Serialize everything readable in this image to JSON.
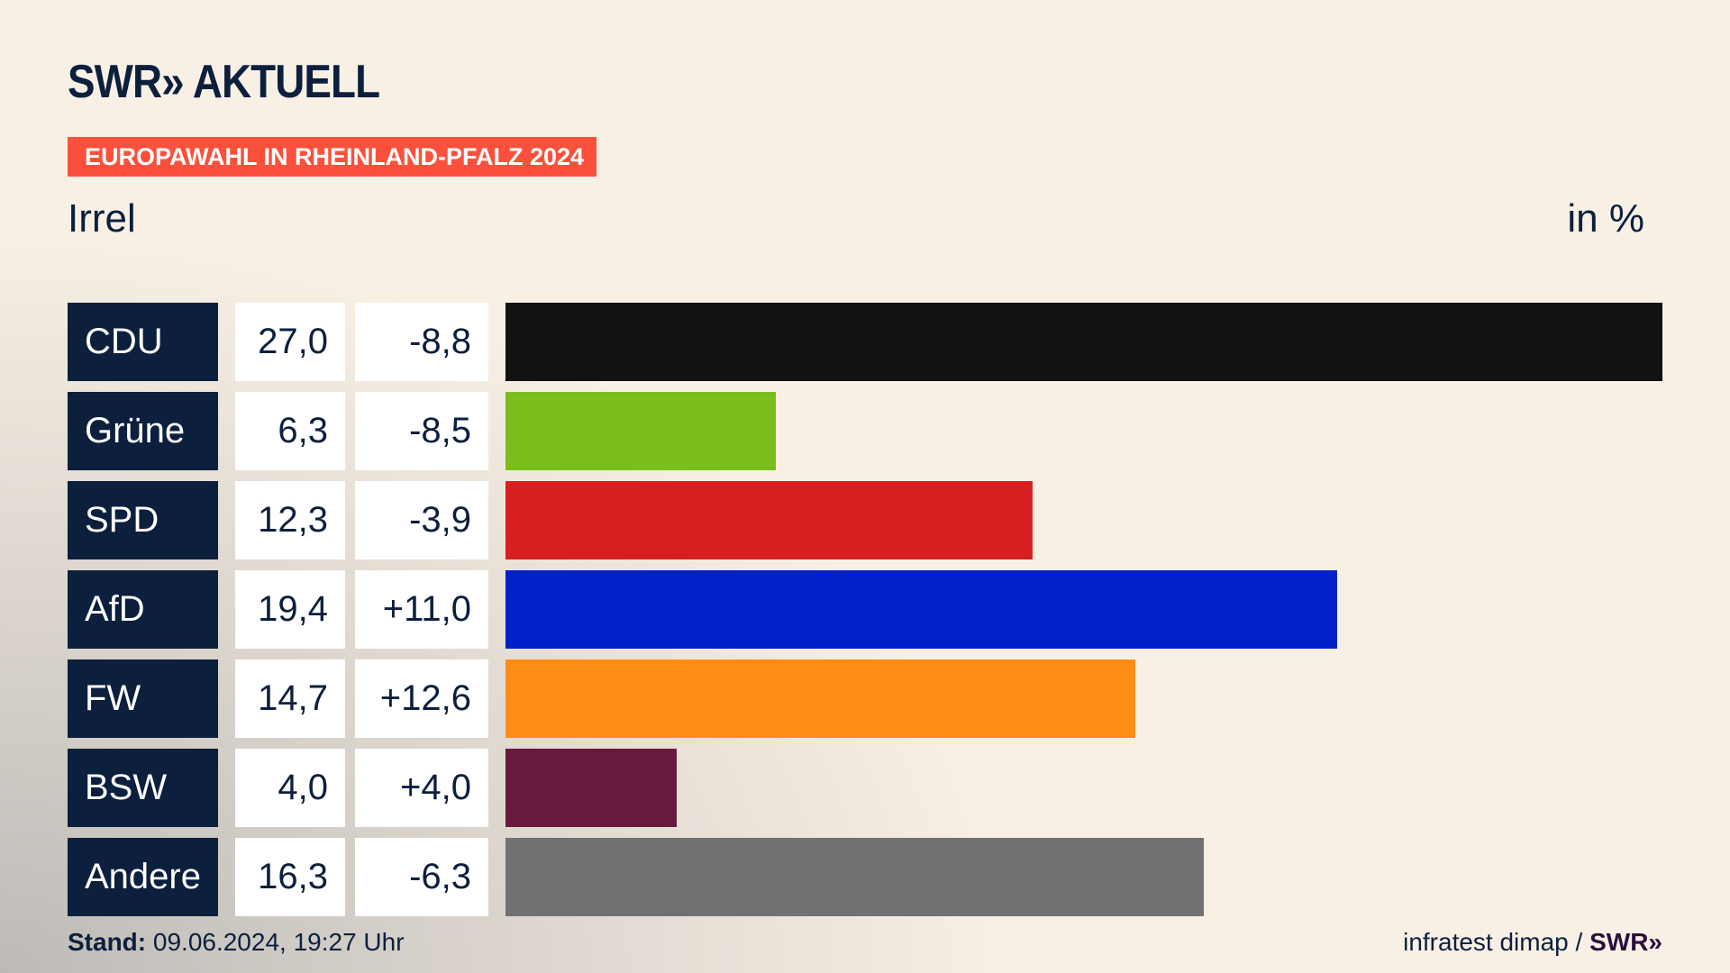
{
  "header": {
    "logo": "SWR» AKTUELL",
    "badge": "EUROPAWAHL IN RHEINLAND-PFALZ 2024",
    "place": "Irrel",
    "unit": "in %"
  },
  "chart_data": {
    "type": "bar",
    "title": "EUROPAWAHL IN RHEINLAND-PFALZ 2024 – Irrel",
    "unit": "in %",
    "categories": [
      "CDU",
      "Grüne",
      "SPD",
      "AfD",
      "FW",
      "BSW",
      "Andere"
    ],
    "values": [
      27.0,
      6.3,
      12.3,
      19.4,
      14.7,
      4.0,
      16.3
    ],
    "value_labels": [
      "27,0",
      "6,3",
      "12,3",
      "19,4",
      "14,7",
      "4,0",
      "16,3"
    ],
    "changes": [
      "-8,8",
      "-8,5",
      "-3,9",
      "+11,0",
      "+12,6",
      "+4,0",
      "-6,3"
    ],
    "colors": [
      "#121212",
      "#7abd1c",
      "#d71f1f",
      "#0021c8",
      "#ff8c17",
      "#681a3e",
      "#707173"
    ],
    "xlim": [
      0,
      27.0
    ]
  },
  "footer": {
    "stand_label": "Stand:",
    "stand_value": "09.06.2024, 19:27 Uhr",
    "source": "infratest dimap /",
    "source_logo": "SWR»"
  }
}
